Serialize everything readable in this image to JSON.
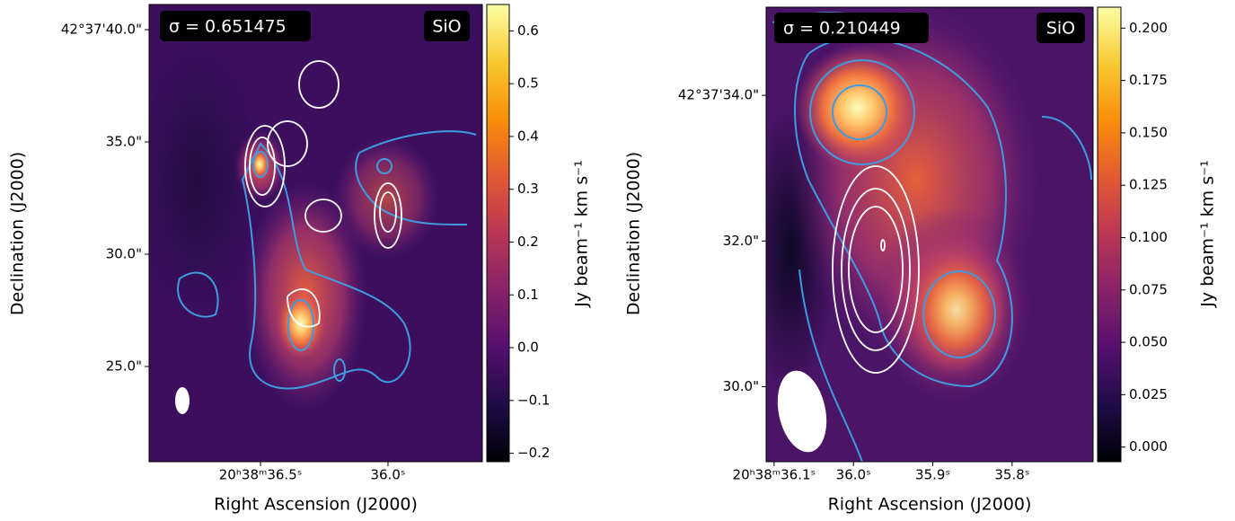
{
  "chart_data": [
    {
      "type": "image",
      "annotation": "σ = 0.651475",
      "line_label": "SiO",
      "colormap": "inferno",
      "x_label": "Right Ascension (J2000)",
      "y_label": "Declination (J2000)",
      "xlim": [
        36.937,
        35.63
      ],
      "xticks": [
        {
          "value": 36.5,
          "label": "20ʰ38ᵐ36.5ˢ"
        },
        {
          "value": 36.0,
          "label": "36.0ˢ"
        }
      ],
      "ylim": [
        20.76,
        41.12
      ],
      "yticks": [
        {
          "value": 40,
          "label": "42°37'40.0\""
        },
        {
          "value": 35,
          "label": "35.0\""
        },
        {
          "value": 30,
          "label": "30.0\""
        },
        {
          "value": 25,
          "label": "25.0\""
        }
      ],
      "colorbar": {
        "label": "Jy beam⁻¹ km s⁻¹",
        "lim": [
          -0.216,
          0.65
        ],
        "ticks": [
          {
            "value": -0.2,
            "label": "−0.2"
          },
          {
            "value": -0.1,
            "label": "−0.1"
          },
          {
            "value": 0,
            "label": "0.0"
          },
          0.1,
          0.2,
          0.3,
          0.4,
          0.5,
          0.6
        ]
      }
    },
    {
      "type": "image",
      "annotation": "σ = 0.210449",
      "line_label": "SiO",
      "colormap": "inferno",
      "x_label": "Right Ascension (J2000)",
      "y_label": "Declination (J2000)",
      "xlim": [
        36.11,
        35.698
      ],
      "xticks": [
        {
          "value": 36.1,
          "label": "20ʰ38ᵐ36.1ˢ"
        },
        {
          "value": 36.0,
          "label": "36.0ˢ"
        },
        {
          "value": 35.9,
          "label": "35.9ˢ"
        },
        {
          "value": 35.8,
          "label": "35.8ˢ"
        }
      ],
      "ylim": [
        28.97,
        35.21
      ],
      "yticks": [
        {
          "value": 34,
          "label": "42°37'34.0\""
        },
        {
          "value": 32,
          "label": "32.0\""
        },
        {
          "value": 30,
          "label": "30.0\""
        }
      ],
      "colorbar": {
        "label": "Jy beam⁻¹ km s⁻¹",
        "lim": [
          -0.007,
          0.21
        ],
        "ticks": [
          {
            "value": 0,
            "label": "0.000"
          },
          0.025,
          {
            "value": 0.05,
            "label": "0.050"
          },
          0.075,
          {
            "value": 0.1,
            "label": "0.100"
          },
          0.125,
          {
            "value": 0.15,
            "label": "0.150"
          },
          0.175,
          {
            "value": 0.2,
            "label": "0.200"
          }
        ]
      }
    }
  ]
}
